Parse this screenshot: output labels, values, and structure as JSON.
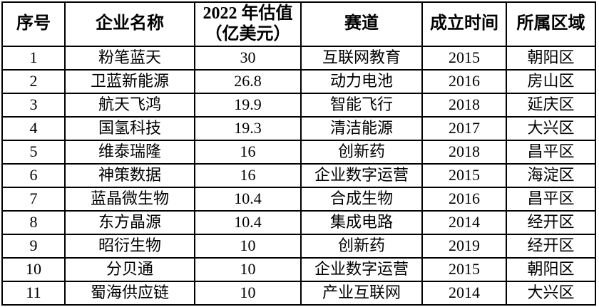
{
  "page": {
    "background_color": "#ffffff",
    "text_color": "#000000",
    "border_color": "#000000"
  },
  "table": {
    "columns": [
      {
        "key": "serial",
        "label": "序号"
      },
      {
        "key": "company",
        "label": "企业名称"
      },
      {
        "key": "valuation",
        "label": "2022 年估值\n（亿美元）"
      },
      {
        "key": "track",
        "label": "赛道"
      },
      {
        "key": "founded",
        "label": "成立时间"
      },
      {
        "key": "region",
        "label": "所属区域"
      }
    ],
    "rows": [
      [
        "1",
        "粉笔蓝天",
        "30",
        "互联网教育",
        "2015",
        "朝阳区"
      ],
      [
        "2",
        "卫蓝新能源",
        "26.8",
        "动力电池",
        "2016",
        "房山区"
      ],
      [
        "3",
        "航天飞鸿",
        "19.9",
        "智能飞行",
        "2018",
        "延庆区"
      ],
      [
        "4",
        "国氢科技",
        "19.3",
        "清洁能源",
        "2017",
        "大兴区"
      ],
      [
        "5",
        "维泰瑞隆",
        "16",
        "创新药",
        "2018",
        "昌平区"
      ],
      [
        "6",
        "神策数据",
        "16",
        "企业数字运营",
        "2015",
        "海淀区"
      ],
      [
        "7",
        "蓝晶微生物",
        "10.4",
        "合成生物",
        "2016",
        "昌平区"
      ],
      [
        "8",
        "东方晶源",
        "10.4",
        "集成电路",
        "2014",
        "经开区"
      ],
      [
        "9",
        "昭衍生物",
        "10",
        "创新药",
        "2019",
        "经开区"
      ],
      [
        "10",
        "分贝通",
        "10",
        "企业数字运营",
        "2015",
        "朝阳区"
      ],
      [
        "11",
        "蜀海供应链",
        "10",
        "产业互联网",
        "2014",
        "大兴区"
      ]
    ]
  }
}
